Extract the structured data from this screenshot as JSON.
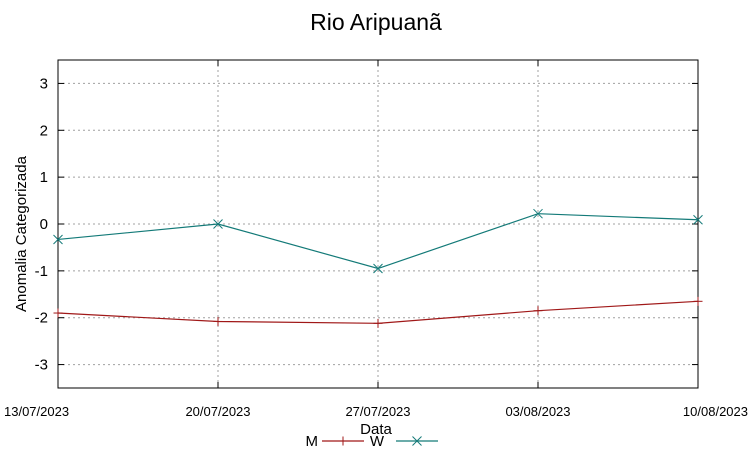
{
  "chart_data": {
    "type": "line",
    "title": "Rio Aripuanã",
    "xlabel": "Data",
    "ylabel": "Anomalia Categorizada",
    "categories": [
      "13/07/2023",
      "20/07/2023",
      "27/07/2023",
      "03/08/2023",
      "10/08/2023"
    ],
    "yticks": [
      "3",
      "2",
      "1",
      "0",
      "-1",
      "-2",
      "-3"
    ],
    "ylim": [
      -3.5,
      3.5
    ],
    "grid": true,
    "legend_position": "bottom-center",
    "series": [
      {
        "name": "M",
        "color": "#a01818",
        "marker": "plus",
        "values": [
          -1.9,
          -2.08,
          -2.12,
          -1.85,
          -1.65
        ]
      },
      {
        "name": "W",
        "color": "#137a78",
        "marker": "cross",
        "values": [
          -0.33,
          0.0,
          -0.95,
          0.22,
          0.09
        ]
      }
    ]
  }
}
